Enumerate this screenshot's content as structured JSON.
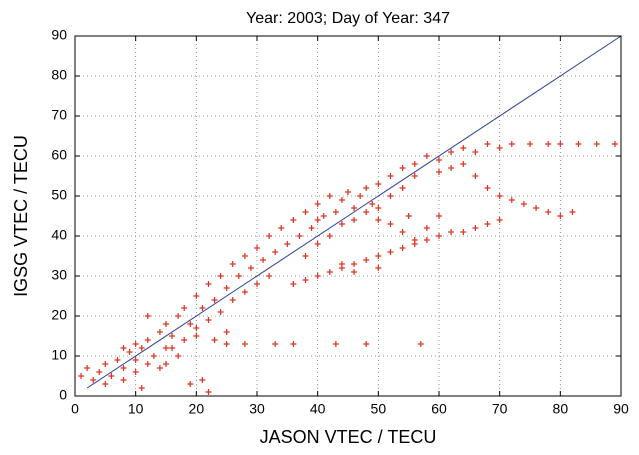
{
  "chart_data": {
    "type": "scatter",
    "title": "Year: 2003; Day of Year: 347",
    "x_label": "JASON VTEC / TECU",
    "y_label": "IGSG VTEC / TECU",
    "xlim": [
      0,
      90
    ],
    "ylim": [
      0,
      90
    ],
    "xticks": [
      0,
      10,
      20,
      30,
      40,
      50,
      60,
      70,
      80,
      90
    ],
    "yticks": [
      0,
      10,
      20,
      30,
      40,
      50,
      60,
      70,
      80,
      90
    ],
    "grid": true,
    "reference_line": {
      "x": [
        2,
        90
      ],
      "y": [
        2,
        90
      ],
      "color": "#2b3f9e"
    },
    "series": [
      {
        "color": "#e0301e",
        "x": [
          1,
          2,
          3,
          4,
          5,
          5,
          6,
          7,
          8,
          8,
          9,
          10,
          10,
          11,
          12,
          12,
          13,
          14,
          14,
          15,
          15,
          16,
          17,
          17,
          18,
          18,
          19,
          20,
          20,
          21,
          22,
          22,
          23,
          24,
          24,
          25,
          26,
          26,
          27,
          28,
          28,
          29,
          30,
          30,
          31,
          32,
          32,
          33,
          20,
          23,
          25,
          10,
          12,
          8,
          34,
          35,
          36,
          37,
          38,
          39,
          40,
          40,
          41,
          42,
          43,
          44,
          45,
          46,
          47,
          48,
          49,
          50,
          38,
          40,
          42,
          44,
          46,
          48,
          50,
          52,
          54,
          56,
          15,
          16,
          25,
          28,
          33,
          36,
          43,
          48,
          57,
          19,
          21,
          22,
          11,
          52,
          54,
          56,
          58,
          60,
          62,
          64,
          66,
          68,
          70,
          72,
          75,
          78,
          80,
          83,
          86,
          89,
          60,
          62,
          64,
          66,
          68,
          70,
          72,
          74,
          76,
          78,
          80,
          82,
          44,
          46,
          48,
          50,
          52,
          54,
          56,
          58,
          60,
          62,
          64,
          66,
          68,
          70,
          36,
          38,
          40,
          42,
          44,
          46,
          50,
          50,
          52,
          54,
          56,
          58,
          60,
          55
        ],
        "values": [
          5,
          7,
          4,
          6,
          3,
          8,
          5,
          9,
          4,
          7,
          11,
          6,
          9,
          12,
          8,
          14,
          10,
          16,
          7,
          12,
          18,
          15,
          20,
          10,
          22,
          14,
          18,
          25,
          17,
          22,
          28,
          19,
          24,
          30,
          21,
          27,
          33,
          24,
          30,
          35,
          26,
          32,
          37,
          28,
          34,
          40,
          30,
          36,
          15,
          14,
          16,
          13,
          20,
          12,
          42,
          38,
          44,
          40,
          46,
          42,
          48,
          44,
          45,
          50,
          46,
          49,
          51,
          47,
          50,
          52,
          48,
          53,
          35,
          38,
          40,
          43,
          44,
          46,
          47,
          50,
          52,
          55,
          8,
          12,
          13,
          13,
          13,
          13,
          13,
          13,
          13,
          3,
          4,
          1,
          2,
          55,
          57,
          58,
          60,
          59,
          61,
          62,
          61,
          63,
          62,
          63,
          63,
          63,
          63,
          63,
          63,
          63,
          56,
          57,
          58,
          55,
          52,
          50,
          49,
          48,
          47,
          46,
          45,
          46,
          33,
          33,
          34,
          35,
          36,
          37,
          38,
          39,
          40,
          41,
          41,
          42,
          43,
          44,
          28,
          29,
          30,
          31,
          32,
          31,
          32,
          44,
          43,
          41,
          39,
          42,
          45,
          45
        ]
      }
    ]
  }
}
